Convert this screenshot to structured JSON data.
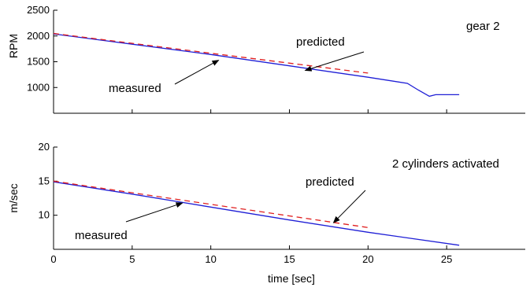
{
  "chart_data": [
    {
      "type": "line",
      "xlabel": "",
      "ylabel": "RPM",
      "xlim": [
        0,
        30
      ],
      "ylim": [
        500,
        2500
      ],
      "xticks": [
        0,
        5,
        10,
        15,
        20,
        25
      ],
      "yticks": [
        1000,
        1500,
        2000,
        2500
      ],
      "xtick_labels_shown": false,
      "grid": false,
      "series": [
        {
          "color": "#1f1fd6",
          "style": "solid",
          "points": [
            [
              0,
              2040
            ],
            [
              5,
              1840
            ],
            [
              10,
              1640
            ],
            [
              15,
              1420
            ],
            [
              20,
              1200
            ],
            [
              22.5,
              1080
            ],
            [
              23.2,
              950
            ],
            [
              23.9,
              830
            ],
            [
              24.3,
              860
            ],
            [
              25.8,
              860
            ]
          ]
        },
        {
          "color": "#e02020",
          "style": "dashed",
          "points": [
            [
              0,
              2050
            ],
            [
              20,
              1280
            ]
          ]
        }
      ],
      "annotations": [
        {
          "text": "gear 2",
          "color": "#3a0a8a"
        },
        {
          "text": "predicted",
          "target": [
            16,
            1330
          ]
        },
        {
          "text": "measured",
          "target": [
            10.5,
            1530
          ]
        }
      ]
    },
    {
      "type": "line",
      "xlabel": "time [sec]",
      "ylabel": "m/sec",
      "xlim": [
        0,
        30
      ],
      "ylim": [
        5,
        20
      ],
      "xticks": [
        0,
        5,
        10,
        15,
        20,
        25
      ],
      "yticks": [
        10,
        15,
        20
      ],
      "grid": false,
      "series": [
        {
          "color": "#1f1fd6",
          "style": "solid",
          "points": [
            [
              0,
              14.9
            ],
            [
              5,
              13.1
            ],
            [
              10,
              11.2
            ],
            [
              15,
              9.3
            ],
            [
              20,
              7.5
            ],
            [
              25.8,
              5.6
            ]
          ]
        },
        {
          "color": "#e02020",
          "style": "dashed",
          "points": [
            [
              0,
              15.0
            ],
            [
              20,
              8.2
            ]
          ]
        }
      ],
      "annotations": [
        {
          "text": "2 cylinders activated",
          "color": "#000000"
        },
        {
          "text": "predicted",
          "target": [
            17.8,
            8.9
          ]
        },
        {
          "text": "measured",
          "target": [
            8.2,
            11.8
          ]
        }
      ]
    }
  ]
}
